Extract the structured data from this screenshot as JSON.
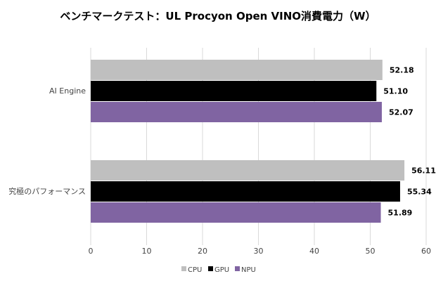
{
  "chart_data": {
    "type": "bar",
    "orientation": "horizontal",
    "title": "ベンチマークテスト：UL Procyon Open VINO消費電力（W）",
    "categories": [
      "AI Engine",
      "究極のパフォーマンス"
    ],
    "series": [
      {
        "name": "CPU",
        "color": "#bfbfbf",
        "values": [
          52.18,
          56.11
        ],
        "labels": [
          "52.18",
          "56.11"
        ]
      },
      {
        "name": "GPU",
        "color": "#000000",
        "values": [
          51.1,
          55.34
        ],
        "labels": [
          "51.10",
          "55.34"
        ]
      },
      {
        "name": "NPU",
        "color": "#8064a2",
        "values": [
          52.07,
          51.89
        ],
        "labels": [
          "52.07",
          "51.89"
        ]
      }
    ],
    "xlim": [
      0,
      60
    ],
    "xticks": [
      "0",
      "10",
      "20",
      "30",
      "40",
      "50",
      "60"
    ],
    "grid": true,
    "legend": "bottom"
  }
}
